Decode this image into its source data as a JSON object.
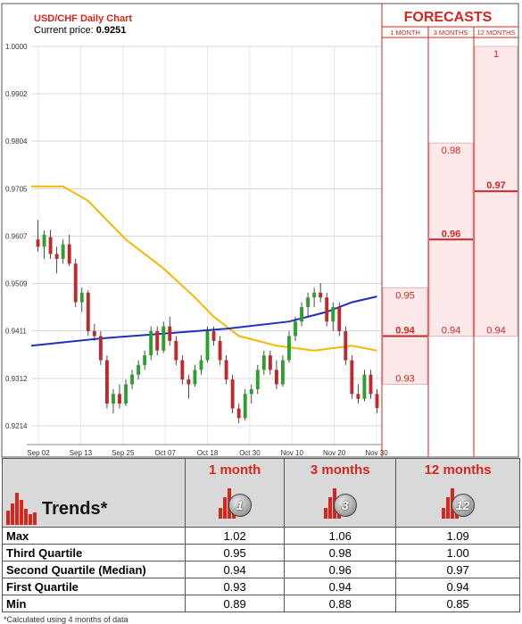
{
  "chart_data": [
    {
      "type": "candlestick",
      "title": "USD/CHF Daily Chart",
      "current_price_label": "Current price:",
      "current_price": "0.9251",
      "y_ticks": [
        "1.0000",
        "0.9902",
        "0.9804",
        "0.9705",
        "0.9607",
        "0.9509",
        "0.9411",
        "0.9312",
        "0.9214"
      ],
      "y_tick_values": [
        1.0,
        0.9902,
        0.9804,
        0.9705,
        0.9607,
        0.9509,
        0.9411,
        0.9312,
        0.9214
      ],
      "ylim": [
        0.919,
        1.0
      ],
      "x_ticks": [
        "Sep 02",
        "Sep 13",
        "Sep 25",
        "Oct 07",
        "Oct 18",
        "Oct 30",
        "Nov 10",
        "Nov 20",
        "Nov 30"
      ],
      "candles": [
        [
          0.96,
          0.964,
          0.9575,
          0.9585
        ],
        [
          0.9585,
          0.9618,
          0.956,
          0.961
        ],
        [
          0.9605,
          0.962,
          0.956,
          0.957
        ],
        [
          0.957,
          0.9585,
          0.953,
          0.956
        ],
        [
          0.956,
          0.96,
          0.955,
          0.959
        ],
        [
          0.959,
          0.961,
          0.9545,
          0.955
        ],
        [
          0.955,
          0.956,
          0.946,
          0.947
        ],
        [
          0.947,
          0.95,
          0.945,
          0.949
        ],
        [
          0.949,
          0.9495,
          0.94,
          0.941
        ],
        [
          0.941,
          0.9425,
          0.939,
          0.94
        ],
        [
          0.94,
          0.941,
          0.934,
          0.935
        ],
        [
          0.935,
          0.936,
          0.925,
          0.926
        ],
        [
          0.926,
          0.929,
          0.924,
          0.928
        ],
        [
          0.928,
          0.93,
          0.925,
          0.926
        ],
        [
          0.926,
          0.931,
          0.9255,
          0.93
        ],
        [
          0.93,
          0.933,
          0.929,
          0.932
        ],
        [
          0.932,
          0.935,
          0.931,
          0.934
        ],
        [
          0.934,
          0.937,
          0.933,
          0.936
        ],
        [
          0.936,
          0.942,
          0.935,
          0.941
        ],
        [
          0.941,
          0.942,
          0.936,
          0.937
        ],
        [
          0.937,
          0.943,
          0.9365,
          0.942
        ],
        [
          0.942,
          0.944,
          0.938,
          0.939
        ],
        [
          0.939,
          0.94,
          0.934,
          0.935
        ],
        [
          0.935,
          0.936,
          0.93,
          0.931
        ],
        [
          0.931,
          0.932,
          0.927,
          0.93
        ],
        [
          0.93,
          0.934,
          0.9295,
          0.933
        ],
        [
          0.933,
          0.936,
          0.932,
          0.935
        ],
        [
          0.935,
          0.942,
          0.9345,
          0.941
        ],
        [
          0.941,
          0.942,
          0.938,
          0.939
        ],
        [
          0.939,
          0.94,
          0.934,
          0.935
        ],
        [
          0.935,
          0.936,
          0.93,
          0.931
        ],
        [
          0.931,
          0.932,
          0.924,
          0.925
        ],
        [
          0.925,
          0.926,
          0.922,
          0.923
        ],
        [
          0.923,
          0.929,
          0.9225,
          0.928
        ],
        [
          0.928,
          0.93,
          0.926,
          0.929
        ],
        [
          0.929,
          0.934,
          0.928,
          0.933
        ],
        [
          0.933,
          0.937,
          0.932,
          0.936
        ],
        [
          0.936,
          0.937,
          0.932,
          0.933
        ],
        [
          0.933,
          0.935,
          0.929,
          0.93
        ],
        [
          0.93,
          0.936,
          0.9295,
          0.935
        ],
        [
          0.935,
          0.941,
          0.9345,
          0.94
        ],
        [
          0.94,
          0.944,
          0.939,
          0.943
        ],
        [
          0.943,
          0.947,
          0.942,
          0.946
        ],
        [
          0.946,
          0.949,
          0.944,
          0.948
        ],
        [
          0.948,
          0.95,
          0.946,
          0.949
        ],
        [
          0.949,
          0.951,
          0.947,
          0.948
        ],
        [
          0.948,
          0.949,
          0.942,
          0.943
        ],
        [
          0.943,
          0.947,
          0.941,
          0.946
        ],
        [
          0.946,
          0.947,
          0.94,
          0.941
        ],
        [
          0.941,
          0.942,
          0.934,
          0.935
        ],
        [
          0.935,
          0.936,
          0.927,
          0.928
        ],
        [
          0.928,
          0.93,
          0.926,
          0.927
        ],
        [
          0.927,
          0.933,
          0.9265,
          0.932
        ],
        [
          0.932,
          0.933,
          0.927,
          0.928
        ],
        [
          0.928,
          0.929,
          0.924,
          0.9251
        ]
      ],
      "ma_blue": [
        [
          0,
          0.938
        ],
        [
          10,
          0.9395
        ],
        [
          20,
          0.9405
        ],
        [
          30,
          0.9415
        ],
        [
          40,
          0.943
        ],
        [
          46,
          0.945
        ],
        [
          50,
          0.947
        ],
        [
          54,
          0.9482
        ]
      ],
      "ma_orange": [
        [
          0,
          0.971
        ],
        [
          4,
          0.971
        ],
        [
          8,
          0.968
        ],
        [
          14,
          0.96
        ],
        [
          20,
          0.954
        ],
        [
          25,
          0.948
        ],
        [
          28,
          0.944
        ],
        [
          32,
          0.94
        ],
        [
          38,
          0.938
        ],
        [
          44,
          0.937
        ],
        [
          50,
          0.938
        ],
        [
          54,
          0.937
        ]
      ]
    },
    {
      "type": "bar",
      "title": "FORECASTS",
      "categories": [
        "1 MONTH",
        "3 MONTHS",
        "12 MONTHS"
      ],
      "series": [
        {
          "values": [
            0.95,
            0.98,
            1
          ]
        },
        {
          "values": [
            0.94,
            0.96,
            0.97
          ]
        },
        {
          "values": [
            0.93,
            0.94,
            0.94
          ]
        }
      ],
      "labels": {
        "1 MONTH": [
          "0.95",
          "0.94",
          "0.93"
        ],
        "3 MONTHS": [
          "0.98",
          "0.96",
          "0.94"
        ],
        "12 MONTHS": [
          "1",
          "0.97",
          "0.94"
        ]
      }
    },
    {
      "type": "table",
      "trends_label": "Trends*",
      "columns": [
        "1 month",
        "3 months",
        "12 months"
      ],
      "badges": [
        "1",
        "3",
        "12"
      ],
      "rows": [
        {
          "label": "Max",
          "values": [
            "1.02",
            "1.06",
            "1.09"
          ]
        },
        {
          "label": "Third Quartile",
          "values": [
            "0.95",
            "0.98",
            "1.00"
          ]
        },
        {
          "label": "Second Quartile (Median)",
          "values": [
            "0.94",
            "0.96",
            "0.97"
          ]
        },
        {
          "label": "First Quartile",
          "values": [
            "0.93",
            "0.94",
            "0.94"
          ]
        },
        {
          "label": "Min",
          "values": [
            "0.89",
            "0.88",
            "0.85"
          ]
        }
      ]
    }
  ],
  "colors": {
    "up": "#2ca02c",
    "down": "#c0282e",
    "ma_blue": "#1f2fbf",
    "ma_orange": "#f5b800",
    "accent": "#d9261c",
    "forecast_fill": "#fde8ea"
  },
  "footnote": "*Calculated using 4 months of data"
}
